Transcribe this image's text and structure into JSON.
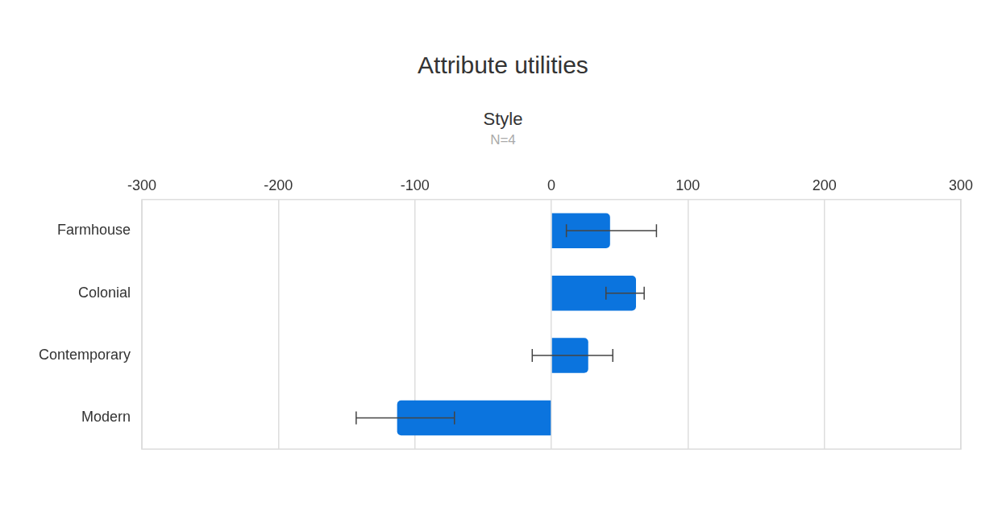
{
  "chart_data": {
    "type": "bar",
    "orientation": "horizontal",
    "title": "Attribute utilities",
    "subtitle": "Style",
    "annotation": "N=4",
    "categories": [
      "Farmhouse",
      "Colonial",
      "Contemporary",
      "Modern"
    ],
    "values": [
      43,
      62,
      27,
      -113
    ],
    "error_bars": [
      [
        11,
        77
      ],
      [
        40,
        68
      ],
      [
        -14,
        45
      ],
      [
        -143,
        -71
      ]
    ],
    "color": "#0b74de",
    "xlim": [
      -300,
      300
    ],
    "xticks": [
      -300,
      -200,
      -100,
      0,
      100,
      200,
      300
    ],
    "grid": true
  }
}
